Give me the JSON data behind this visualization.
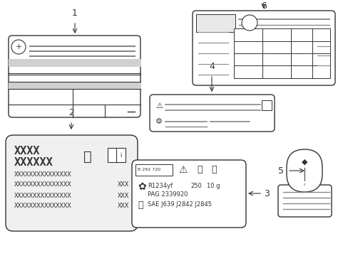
{
  "bg_color": "#ffffff",
  "line_color": "#333333",
  "gray_fill": "#d0d0d0",
  "light_gray": "#e8e8e8",
  "label1": "1",
  "label2": "2",
  "label3": "3",
  "label4": "4",
  "label5": "5",
  "label6": "6",
  "box3_line1": "B 292 720",
  "box3_ref1": "R1234yf",
  "box3_val1": "250",
  "box3_val2": "10 g",
  "box3_line2": "PAG 2339920",
  "box3_line3": "SAE J639 J2842 J2845"
}
